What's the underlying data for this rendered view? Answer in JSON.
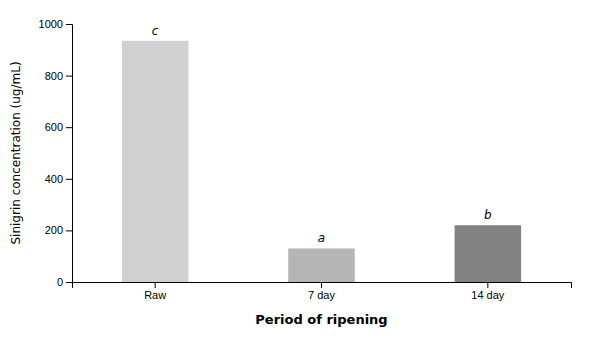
{
  "chart_data": {
    "type": "bar",
    "categories": [
      "Raw",
      "7 day",
      "14 day"
    ],
    "values": [
      935,
      130,
      220
    ],
    "colors": [
      "#d0d0d0",
      "#b5b5b5",
      "#828282"
    ],
    "annotations": [
      "c",
      "a",
      "b"
    ],
    "ylabel": "Sinigrin concentration (ug/mL)",
    "xlabel": "Period of ripening",
    "ylim": [
      0,
      1000
    ],
    "yticks": [
      0,
      200,
      400,
      600,
      800,
      1000
    ],
    "grid": false
  }
}
